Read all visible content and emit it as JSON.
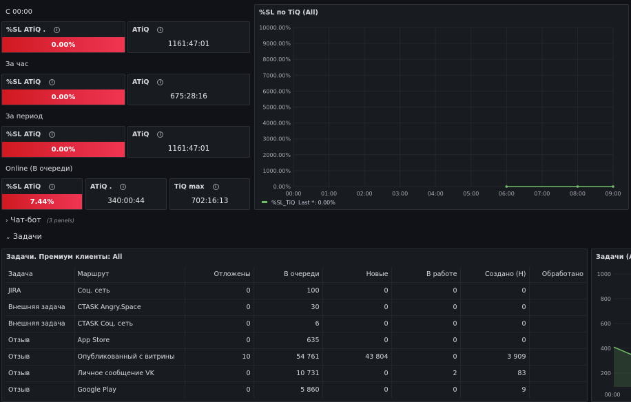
{
  "sections": {
    "s1": "С 00:00",
    "s2": "За час",
    "s3": "За период",
    "s4": "Online (В очереди)"
  },
  "stats": {
    "r1": {
      "sl_title": "%SL ATiQ .",
      "sl_value": "0.00%",
      "atiq_title": "ATiQ",
      "atiq_value": "1161:47:01"
    },
    "r2": {
      "sl_title": "%SL ATiQ",
      "sl_value": "0.00%",
      "atiq_title": "ATiQ",
      "atiq_value": "675:28:16"
    },
    "r3": {
      "sl_title": "%SL ATiQ",
      "sl_value": "0.00%",
      "atiq_title": "ATiQ",
      "atiq_value": "1161:47:01"
    },
    "r4": {
      "sl_title": "%SL ATiQ",
      "sl_value": "7.44%",
      "atiq_title": "ATiQ .",
      "atiq_value": "340:00:44",
      "tiq_title": "TiQ max",
      "tiq_value": "702:16:13"
    }
  },
  "info_glyph": "i",
  "chart_data": [
    {
      "type": "line",
      "title": "%SL по TiQ (All)",
      "y_ticks": [
        "10000.00%",
        "9000.00%",
        "8000.00%",
        "7000.00%",
        "6000.00%",
        "5000.00%",
        "4000.00%",
        "3000.00%",
        "2000.00%",
        "1000.00%",
        "0.00%"
      ],
      "ylim": [
        0,
        10000
      ],
      "x": [
        "00:00",
        "01:00",
        "02:00",
        "03:00",
        "04:00",
        "05:00",
        "06:00",
        "07:00",
        "08:00",
        "09:00"
      ],
      "series": [
        {
          "name": "%SL_TiQ",
          "points": [
            [
              6,
              0
            ],
            [
              8,
              0
            ],
            [
              9,
              0
            ]
          ],
          "color": "#73bf69"
        }
      ],
      "legend": {
        "name": "%SL_TiQ",
        "text": "Last *: 0.00%"
      },
      "grid": true
    },
    {
      "type": "line",
      "title": "Задачи (All",
      "y_ticks": [
        "1000",
        "800",
        "600",
        "400",
        "200"
      ],
      "x": [
        "00:00"
      ],
      "series": [
        {
          "points": [
            [
              0,
              410
            ],
            [
              1,
              320
            ]
          ],
          "color": "#73bf69"
        }
      ]
    }
  ],
  "rows": {
    "chatbot": {
      "label": "Чат-бот",
      "meta": "(3 panels)"
    },
    "tasks": {
      "label": "Задачи"
    }
  },
  "table": {
    "title": "Задачи. Премиум клиенты: All",
    "headers": [
      "Задача",
      "Маршрут",
      "Отложены",
      "В очереди",
      "Новые",
      "В работе",
      "Создано (Н)",
      "Обработано"
    ],
    "rows": [
      [
        "JIRA",
        "Соц. сеть",
        "0",
        "100",
        "0",
        "0",
        "0",
        ""
      ],
      [
        "Внешняя задача",
        "CTASK Angry.Space",
        "0",
        "30",
        "0",
        "0",
        "0",
        ""
      ],
      [
        "Внешняя задача",
        "CTASK Соц. сеть",
        "0",
        "6",
        "0",
        "0",
        "0",
        ""
      ],
      [
        "Отзыв",
        "App Store",
        "0",
        "635",
        "0",
        "0",
        "0",
        ""
      ],
      [
        "Отзыв",
        "Опубликованный с витрины",
        "10",
        "54 761",
        "43 804",
        "0",
        "3 909",
        ""
      ],
      [
        "Отзыв",
        "Личное сообщение VK",
        "0",
        "10 731",
        "0",
        "2",
        "83",
        ""
      ],
      [
        "Отзыв",
        "Google Play",
        "0",
        "5 860",
        "0",
        "0",
        "9",
        ""
      ]
    ]
  },
  "colors": {
    "accent_red": "#e02a41",
    "series_green": "#73bf69",
    "panel_bg": "#181b1f"
  }
}
